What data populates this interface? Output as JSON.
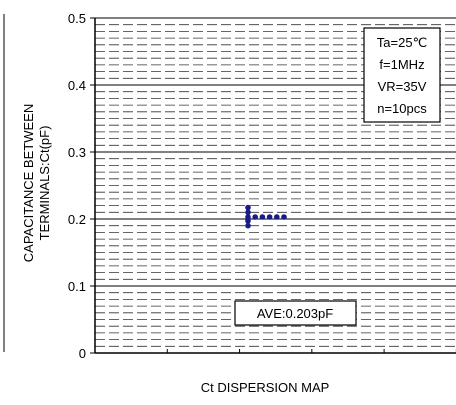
{
  "chart_data": {
    "type": "scatter",
    "title": "Ct DISPERSION MAP",
    "ylabel_line1": "CAPACITANCE BETWEEN",
    "ylabel_line2": "TERMINALS:Ct(pF)",
    "ylim": [
      0,
      0.5
    ],
    "y_ticks": [
      "0",
      "0.1",
      "0.2",
      "0.3",
      "0.4",
      "0.5"
    ],
    "grid": true,
    "point_color": "#1a1a8c",
    "conditions": [
      "Ta=25℃",
      "f=1MHz",
      "VR=35V",
      "n=10pcs"
    ],
    "conditions_placement": "top-right",
    "average_label": "AVE:0.203pF",
    "average_placement": "bottom-center",
    "points": [
      {
        "column": 0,
        "y": 0.19
      },
      {
        "column": 0,
        "y": 0.197
      },
      {
        "column": 0,
        "y": 0.203
      },
      {
        "column": 0,
        "y": 0.21
      },
      {
        "column": 0,
        "y": 0.217
      },
      {
        "column": 1,
        "y": 0.203
      },
      {
        "column": 2,
        "y": 0.203
      },
      {
        "column": 3,
        "y": 0.203
      },
      {
        "column": 4,
        "y": 0.203
      },
      {
        "column": 5,
        "y": 0.203
      }
    ]
  }
}
